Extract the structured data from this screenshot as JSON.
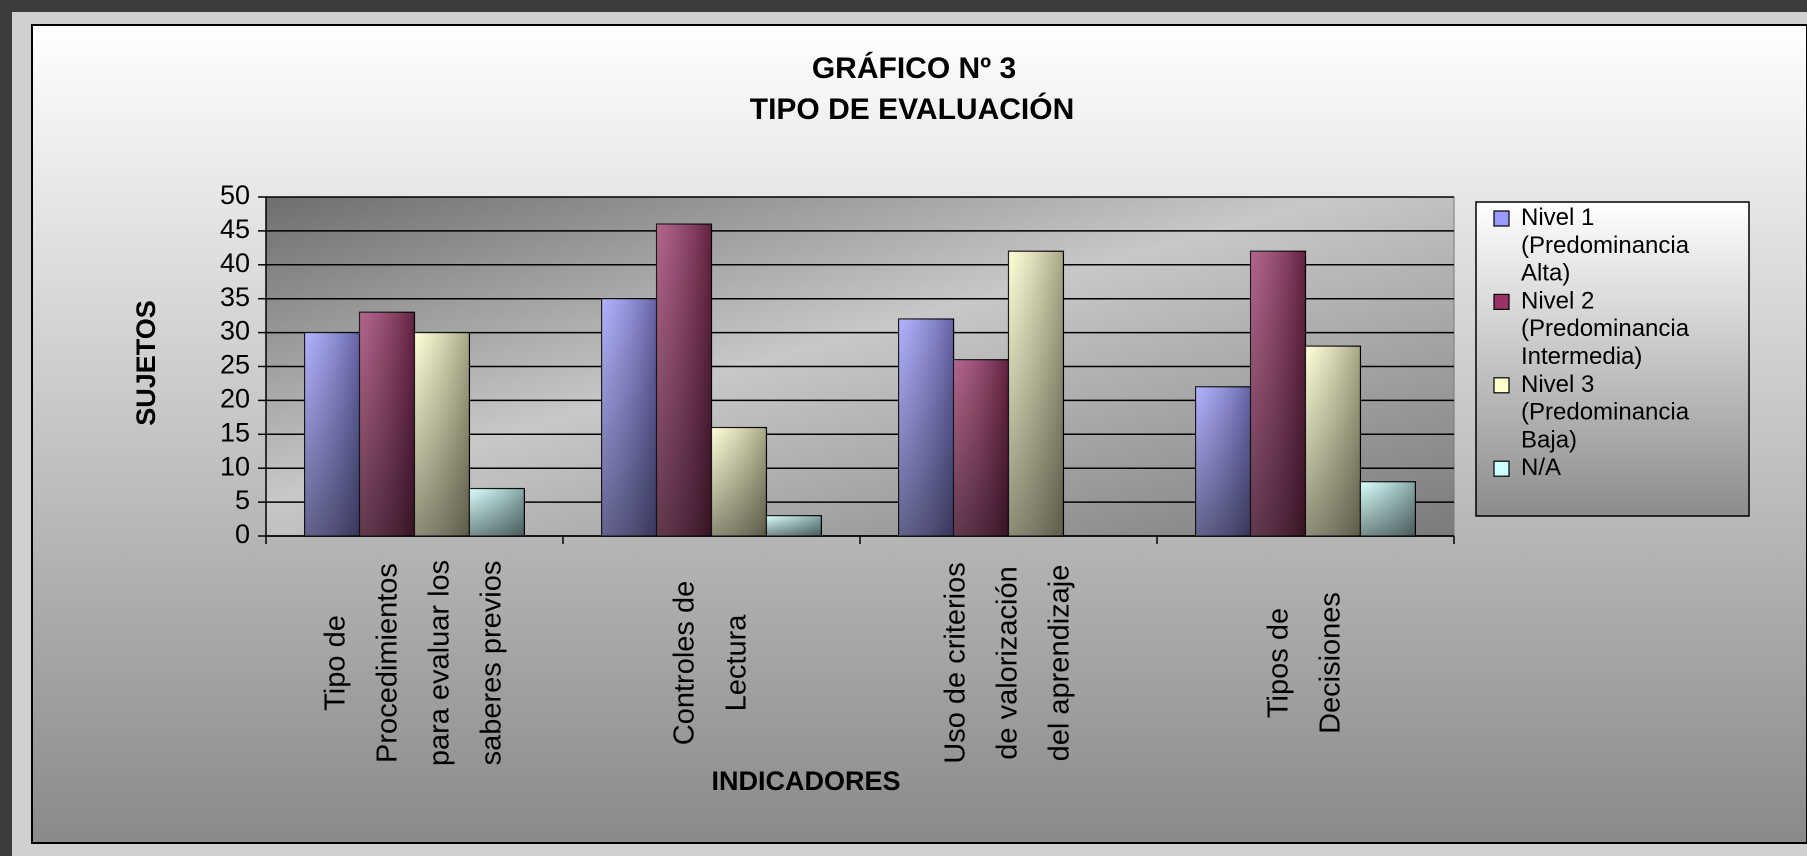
{
  "chart_data": {
    "type": "bar",
    "title": [
      "GRÁFICO Nº 3",
      "TIPO DE EVALUACIÓN"
    ],
    "y_label": "SUJETOS",
    "x_label": "INDICADORES",
    "categories": [
      "Tipo de Procedimientos para evaluar los saberes previos",
      "Controles de Lectura",
      "Uso de criterios de valorización del aprendizaje",
      "Tipos de Decisiones"
    ],
    "series": [
      {
        "name": "Nivel 1 (Predominancia Alta)",
        "color": "#9999ff",
        "values": [
          30,
          35,
          32,
          22
        ]
      },
      {
        "name": "Nivel 2 (Predominancia Intermedia)",
        "color": "#993366",
        "values": [
          33,
          46,
          26,
          42
        ]
      },
      {
        "name": "Nivel 3 (Predominancia Baja)",
        "color": "#ffffcc",
        "values": [
          30,
          16,
          42,
          28
        ]
      },
      {
        "name": "N/A",
        "color": "#ccffff",
        "values": [
          7,
          3,
          0,
          8
        ]
      }
    ],
    "ylim": [
      0,
      50
    ],
    "yticks": [
      0,
      5,
      10,
      15,
      20,
      25,
      30,
      35,
      40,
      45,
      50
    ],
    "grid": true,
    "legend": "right"
  }
}
